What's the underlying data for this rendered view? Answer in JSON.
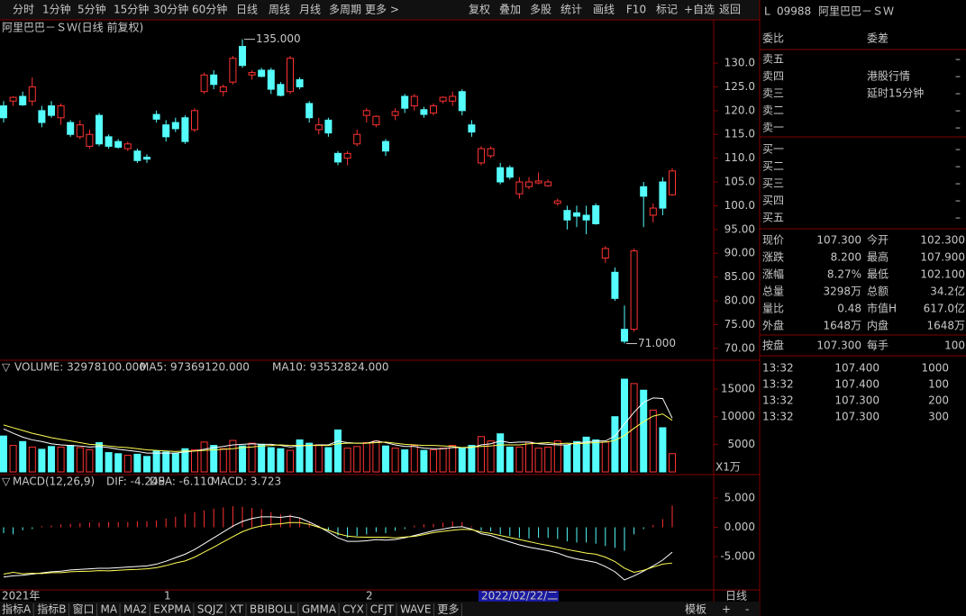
{
  "toolbar": {
    "left": [
      "分时",
      "1分钟",
      "5分钟",
      "15分钟",
      "30分钟",
      "60分钟",
      "日线",
      "周线",
      "月线",
      "多周期",
      "更多 >"
    ],
    "right": [
      "复权",
      "叠加",
      "多股",
      "统计",
      "画线",
      "F10",
      "标记",
      "+自选",
      "返回"
    ]
  },
  "price_chart": {
    "title": "阿里巴巴－ＳＷ(日线 前复权)",
    "ylim": [
      67.5,
      139.1
    ],
    "yticks": [
      {
        "value": 70,
        "label": "70.00"
      },
      {
        "value": 75,
        "label": "75.00"
      },
      {
        "value": 80,
        "label": "80.00"
      },
      {
        "value": 85,
        "label": "85.00"
      },
      {
        "value": 90,
        "label": "90.00"
      },
      {
        "value": 95,
        "label": "95.00"
      },
      {
        "value": 100,
        "label": "100.0"
      },
      {
        "value": 105,
        "label": "105.0"
      },
      {
        "value": 110,
        "label": "110.0"
      },
      {
        "value": 115,
        "label": "115.0"
      },
      {
        "value": 120,
        "label": "120.0"
      },
      {
        "value": 125,
        "label": "125.0"
      },
      {
        "value": 130,
        "label": "130.0"
      }
    ],
    "annotations": [
      {
        "value": 135,
        "label": "135.000"
      },
      {
        "value": 71,
        "label": "71.000"
      }
    ],
    "candles": [
      [
        121,
        122,
        117.5,
        118.5
      ],
      [
        122,
        123,
        121,
        122.8
      ],
      [
        123,
        124,
        121,
        121.2
      ],
      [
        122,
        127,
        121,
        125
      ],
      [
        120,
        121,
        116.5,
        117.5
      ],
      [
        121,
        122,
        118.5,
        119
      ],
      [
        118.5,
        121.5,
        117,
        121
      ],
      [
        117.5,
        118,
        114.5,
        115
      ],
      [
        114.5,
        118,
        114,
        117
      ],
      [
        112.5,
        116,
        112,
        115
      ],
      [
        119,
        119.5,
        112.5,
        113
      ],
      [
        114.5,
        115,
        112,
        112.5
      ],
      [
        113.5,
        114,
        112,
        112.3
      ],
      [
        112,
        113.5,
        111.5,
        113
      ],
      [
        111.5,
        112,
        109,
        109.5
      ],
      [
        110.2,
        110.8,
        109,
        109.8
      ],
      [
        119.2,
        120,
        117.5,
        118.2
      ],
      [
        117,
        118,
        113.5,
        114.5
      ],
      [
        117.5,
        118.5,
        115.5,
        116.2
      ],
      [
        118.5,
        119,
        113,
        113.5
      ],
      [
        116,
        120.5,
        115.5,
        120
      ],
      [
        124,
        128,
        123.5,
        127.5
      ],
      [
        127.5,
        128.5,
        124.5,
        125.5
      ],
      [
        124,
        125.5,
        123,
        125
      ],
      [
        126,
        131.5,
        125.5,
        131
      ],
      [
        133.5,
        135,
        129,
        129.5
      ],
      [
        127.5,
        128.5,
        126.5,
        128
      ],
      [
        128.5,
        129,
        127,
        127.2
      ],
      [
        128.5,
        129,
        123.5,
        124.5
      ],
      [
        125.5,
        126,
        123,
        123.2
      ],
      [
        124,
        131.5,
        123.5,
        131
      ],
      [
        126.5,
        127,
        124.5,
        125
      ],
      [
        121.5,
        122,
        117.5,
        118.5
      ],
      [
        116,
        118.5,
        115,
        117
      ],
      [
        118,
        118.5,
        114.5,
        115.3
      ],
      [
        111,
        111.5,
        108.5,
        109.2
      ],
      [
        110,
        111.5,
        108.5,
        111
      ],
      [
        113,
        116,
        112.5,
        115
      ],
      [
        119,
        120.5,
        117.5,
        120
      ],
      [
        117,
        119,
        116.5,
        118.8
      ],
      [
        113.5,
        114,
        110.5,
        111.5
      ],
      [
        119,
        120.5,
        118,
        119.8
      ],
      [
        123,
        123.5,
        119.5,
        120.5
      ],
      [
        121,
        123.5,
        120,
        123
      ],
      [
        120.2,
        120.8,
        118.5,
        119.2
      ],
      [
        119.5,
        121.5,
        119,
        121
      ],
      [
        122,
        123,
        121.5,
        122.8
      ],
      [
        122,
        124,
        121,
        123
      ],
      [
        124,
        124.5,
        119,
        120
      ],
      [
        117,
        118,
        114.5,
        115.5
      ],
      [
        109,
        112.5,
        108.5,
        112
      ],
      [
        110.5,
        112.5,
        110,
        112
      ],
      [
        108,
        109,
        104.5,
        105
      ],
      [
        108,
        108.5,
        105.5,
        106
      ],
      [
        102.5,
        106,
        101.5,
        105
      ],
      [
        104,
        106,
        103.5,
        105
      ],
      [
        104.8,
        107,
        104.5,
        105.2
      ],
      [
        104.2,
        105.5,
        104,
        105
      ],
      [
        100.5,
        101.5,
        100,
        101
      ],
      [
        99,
        100,
        95,
        97
      ],
      [
        98.5,
        100,
        95.5,
        97.8
      ],
      [
        98,
        100,
        94,
        97
      ],
      [
        100,
        100.5,
        96,
        96.2
      ],
      [
        89,
        91.5,
        88,
        91
      ],
      [
        86,
        87,
        80,
        80.5
      ],
      [
        74,
        79,
        71,
        71.5
      ],
      [
        74,
        91,
        73.5,
        90.5
      ],
      [
        104,
        105,
        95.5,
        102
      ],
      [
        98,
        100.5,
        96.5,
        99.5
      ],
      [
        105,
        106,
        98,
        99.5
      ],
      [
        102.3,
        107.9,
        102.1,
        107.3
      ]
    ]
  },
  "volume": {
    "header": [
      "VOLUME: 32978100.000",
      "MA5: 97369120.000",
      "MA10: 93532824.000"
    ],
    "unit": "X1万",
    "ylim": [
      0,
      19900
    ],
    "yticks": [
      5000,
      10000,
      15000
    ],
    "values": [
      6500,
      4800,
      5500,
      4500,
      4100,
      4600,
      4500,
      4800,
      4400,
      4000,
      5300,
      3500,
      3300,
      3000,
      3200,
      2800,
      3800,
      3600,
      3400,
      4200,
      4000,
      5400,
      4800,
      4200,
      5700,
      4700,
      5200,
      5000,
      4400,
      4200,
      3900,
      5800,
      5200,
      4900,
      4400,
      7600,
      4300,
      4600,
      5300,
      5600,
      4700,
      4300,
      4000,
      4800,
      3900,
      4000,
      4300,
      4800,
      4300,
      4800,
      6400,
      5600,
      6900,
      4500,
      4500,
      5400,
      4300,
      4500,
      5600,
      4900,
      5500,
      6300,
      5800,
      5400,
      10000,
      16800,
      16000,
      14800,
      11200,
      8000,
      3298
    ],
    "ma5": [
      7800,
      7000,
      6300,
      5800,
      5500,
      5100,
      4900,
      4800,
      4700,
      4500,
      4600,
      4400,
      4100,
      3900,
      3700,
      3400,
      3400,
      3400,
      3400,
      3600,
      3800,
      4100,
      4400,
      4600,
      4900,
      5000,
      5100,
      5000,
      5000,
      4800,
      4500,
      4700,
      4800,
      4900,
      4900,
      5600,
      5300,
      5200,
      5200,
      5600,
      5300,
      4900,
      4600,
      4600,
      4300,
      4200,
      4200,
      4400,
      4400,
      4400,
      4900,
      5100,
      5600,
      5300,
      5400,
      5400,
      5100,
      5000,
      4900,
      4900,
      5300,
      5400,
      5600,
      5600,
      6500,
      8700,
      10800,
      12600,
      13400,
      13300,
      9737
    ],
    "ma10": [
      8500,
      8000,
      7500,
      7000,
      6600,
      6200,
      5900,
      5600,
      5300,
      5000,
      4900,
      4700,
      4500,
      4400,
      4200,
      4000,
      3900,
      3800,
      3700,
      3800,
      3800,
      3900,
      4000,
      4100,
      4200,
      4400,
      4500,
      4700,
      4800,
      4900,
      4800,
      4800,
      4800,
      4800,
      4800,
      5100,
      5200,
      5200,
      5200,
      5300,
      5400,
      5200,
      5000,
      4900,
      4800,
      4800,
      4700,
      4600,
      4400,
      4500,
      4600,
      4700,
      4900,
      4900,
      4900,
      5100,
      5200,
      5300,
      5100,
      5200,
      5100,
      5200,
      5300,
      5400,
      5700,
      6600,
      7900,
      9100,
      10100,
      10500,
      9353
    ]
  },
  "macd": {
    "header": [
      "MACD(12,26,9)",
      "DIF: -4.249",
      "DEA: -6.110",
      "MACD: 3.723"
    ],
    "ylim": [
      -10.7,
      8.7
    ],
    "yticks": [
      {
        "value": 5,
        "label": "5.000"
      },
      {
        "value": 0,
        "label": "0.000"
      },
      {
        "value": -5,
        "label": "-5.000"
      }
    ],
    "hist": [
      -1,
      -1.2,
      -0.5,
      -0.3,
      0.2,
      0.3,
      0.5,
      0.6,
      0.7,
      0.8,
      0.8,
      0.9,
      0.9,
      0.9,
      1,
      1,
      1.2,
      1.5,
      1.8,
      2.3,
      2.6,
      2.9,
      3.2,
      3.4,
      3.6,
      3.5,
      3.3,
      3.1,
      2.6,
      2.2,
      2.2,
      1.6,
      0.8,
      0.3,
      -0.6,
      -1.4,
      -1.8,
      -1.5,
      -1.2,
      -0.8,
      -1,
      -0.6,
      -0.3,
      0.3,
      0.5,
      0.6,
      0.8,
      1,
      0.9,
      0.2,
      -0.6,
      -0.7,
      -1.2,
      -1.5,
      -1.8,
      -1.9,
      -1.8,
      -1.8,
      -2,
      -2.4,
      -2.6,
      -2.6,
      -2.8,
      -3.2,
      -3.5,
      -4,
      -1.2,
      -0.3,
      0.4,
      1.4,
      3.723
    ],
    "dif": [
      -8.5,
      -8.3,
      -8.2,
      -8,
      -7.8,
      -7.6,
      -7.5,
      -7.3,
      -7.2,
      -7.1,
      -7,
      -7,
      -6.9,
      -6.8,
      -6.7,
      -6.6,
      -6.3,
      -5.8,
      -5.2,
      -4.6,
      -3.8,
      -2.8,
      -1.8,
      -0.8,
      0.2,
      1,
      1.5,
      1.8,
      1.8,
      1.7,
      1.9,
      1.6,
      0.9,
      0.1,
      -0.8,
      -1.8,
      -2.4,
      -2.4,
      -2.3,
      -2.1,
      -2.2,
      -2.1,
      -1.8,
      -1.4,
      -1,
      -0.6,
      -0.3,
      0,
      0.1,
      -0.3,
      -1.1,
      -1.4,
      -2,
      -2.5,
      -3,
      -3.4,
      -3.7,
      -4,
      -4.4,
      -5,
      -5.4,
      -5.7,
      -6,
      -6.7,
      -7.6,
      -9,
      -8.3,
      -7.5,
      -6.6,
      -5.6,
      -4.249
    ],
    "dea": [
      -8,
      -7.7,
      -7.95,
      -7.85,
      -7.9,
      -7.75,
      -7.75,
      -7.6,
      -7.55,
      -7.5,
      -7.4,
      -7.45,
      -7.35,
      -7.25,
      -7.2,
      -7.1,
      -6.9,
      -6.55,
      -6.1,
      -5.75,
      -5.1,
      -4.25,
      -3.4,
      -2.5,
      -1.6,
      -0.75,
      -0.15,
      0.25,
      0.5,
      0.6,
      0.8,
      0.8,
      0.5,
      0,
      -0.5,
      -1.1,
      -1.5,
      -1.65,
      -1.7,
      -1.7,
      -1.7,
      -1.8,
      -1.65,
      -1.55,
      -1.25,
      -0.9,
      -0.7,
      -0.5,
      -0.35,
      -0.4,
      -0.8,
      -1.05,
      -1.4,
      -1.75,
      -2.1,
      -2.45,
      -2.8,
      -3.1,
      -3.4,
      -3.8,
      -4.1,
      -4.4,
      -4.6,
      -5.1,
      -5.85,
      -7,
      -7.7,
      -7.35,
      -6.8,
      -6.3,
      -6.11
    ]
  },
  "xaxis": {
    "labels": [
      "2021年",
      "1",
      "2"
    ],
    "cursor": "2022/02/22/二",
    "period": "日线"
  },
  "bottom_tabs": [
    "指标A",
    "指标B",
    "窗口",
    "MA",
    "MA2",
    "EXPMA",
    "SQJZ",
    "XT",
    "BBIBOLL",
    "GMMA",
    "CYX",
    "CFJT",
    "WAVE",
    "更多"
  ],
  "bottom_right": [
    "模板",
    "+",
    "-"
  ],
  "quote": {
    "flag": "L",
    "code": "09988",
    "name": "阿里巴巴－ＳＷ",
    "header": [
      "委比",
      "委差"
    ],
    "asks": [
      [
        "卖五",
        "–"
      ],
      [
        "卖四",
        "–"
      ],
      [
        "卖三",
        "–"
      ],
      [
        "卖二",
        "–"
      ],
      [
        "卖一",
        "–"
      ]
    ],
    "notice": [
      "港股行情",
      "延时15分钟"
    ],
    "bids": [
      [
        "买一",
        "–"
      ],
      [
        "买二",
        "–"
      ],
      [
        "买三",
        "–"
      ],
      [
        "买四",
        "–"
      ],
      [
        "买五",
        "–"
      ]
    ],
    "stats": [
      [
        "现价",
        "107.300",
        "今开",
        "102.300"
      ],
      [
        "涨跌",
        "8.200",
        "最高",
        "107.900"
      ],
      [
        "涨幅",
        "8.27%",
        "最低",
        "102.100"
      ],
      [
        "总量",
        "3298万",
        "总额",
        "34.2亿"
      ],
      [
        "量比",
        "0.48",
        "市值H",
        "617.0亿"
      ],
      [
        "外盘",
        "1648万",
        "内盘",
        "1648万"
      ],
      [
        "按盘",
        "107.300",
        "每手",
        "100"
      ]
    ],
    "ticks": [
      [
        "13:32",
        "107.400",
        "1000"
      ],
      [
        "13:32",
        "107.400",
        "100"
      ],
      [
        "13:32",
        "107.300",
        "200"
      ],
      [
        "13:32",
        "107.300",
        "300"
      ]
    ]
  }
}
